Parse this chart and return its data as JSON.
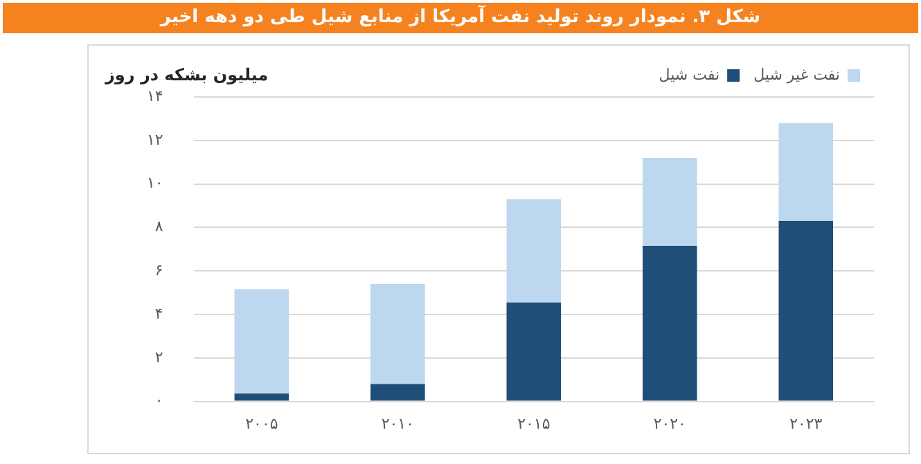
{
  "chart_data": {
    "type": "bar",
    "title": "شکل ۳. نمودار روند تولید نفت آمریکا از منابع شیل طی دو دهه اخیر",
    "ylabel": "میلیون بشکه در روز",
    "categories": [
      "۲۰۰۵",
      "۲۰۱۰",
      "۲۰۱۵",
      "۲۰۲۰",
      "۲۰۲۳"
    ],
    "series": [
      {
        "name": "نفت شیل",
        "color": "#1f4e79",
        "values": [
          0.36,
          0.8,
          4.55,
          7.15,
          8.3
        ]
      },
      {
        "name": "نفت غیر شیل",
        "color": "#bdd7ee",
        "values": [
          4.8,
          4.6,
          4.75,
          4.05,
          4.5
        ]
      }
    ],
    "stacked": true,
    "ylim": [
      0,
      14
    ],
    "yticks": [
      {
        "value": 0,
        "label": "۰"
      },
      {
        "value": 2,
        "label": "۲"
      },
      {
        "value": 4,
        "label": "۴"
      },
      {
        "value": 6,
        "label": "۶"
      },
      {
        "value": 8,
        "label": "۸"
      },
      {
        "value": 10,
        "label": "۱۰"
      },
      {
        "value": 12,
        "label": "۱۲"
      },
      {
        "value": 14,
        "label": "۱۴"
      }
    ],
    "grid": "y",
    "legend": "top right"
  }
}
